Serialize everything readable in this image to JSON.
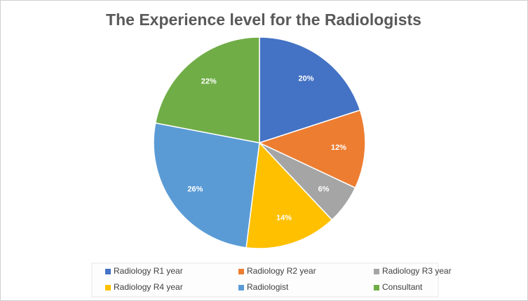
{
  "chart_data": {
    "type": "pie",
    "title": "The Experience level for the Radiologists",
    "categories": [
      "Radiology R1 year",
      "Radiology R2 year",
      "Radiology R3 year",
      "Radiology R4 year",
      "Radiologist",
      "Consultant"
    ],
    "values": [
      20,
      12,
      6,
      14,
      26,
      22
    ],
    "value_labels": [
      "20%",
      "12%",
      "6%",
      "14%",
      "26%",
      "22%"
    ],
    "colors": [
      "#4472c4",
      "#ed7d31",
      "#a5a5a5",
      "#ffc000",
      "#5b9bd5",
      "#70ad47"
    ],
    "legend": "bottom"
  }
}
